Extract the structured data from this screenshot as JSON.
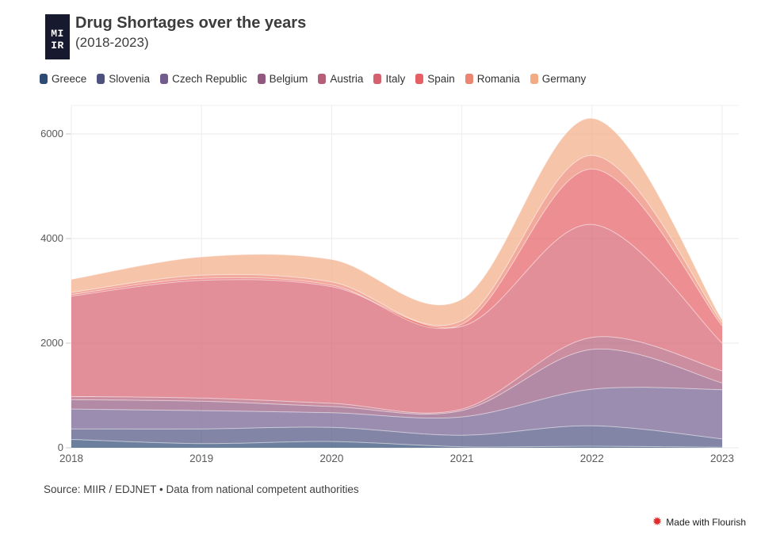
{
  "header": {
    "logo_line1": "MI",
    "logo_line2": "IR",
    "title": "Drug Shortages over the years",
    "subtitle": "(2018-2023)"
  },
  "chart_data": {
    "type": "area",
    "stacked": true,
    "title": "Drug Shortages over the years (2018-2023)",
    "x": [
      2018,
      2019,
      2020,
      2021,
      2022,
      2023
    ],
    "xticks": [
      "2018",
      "2019",
      "2020",
      "2021",
      "2022",
      "2023"
    ],
    "yticks": [
      0,
      2000,
      4000,
      6000
    ],
    "ytick_labels": [
      "0",
      "2000",
      "4000",
      "6000"
    ],
    "ylim": [
      0,
      6000
    ],
    "grid": true,
    "legend_position": "top",
    "fill_opacity": 0.7,
    "series": [
      {
        "name": "Greece",
        "color": "#2d4a73",
        "values": [
          160,
          80,
          120,
          20,
          30,
          10
        ]
      },
      {
        "name": "Slovenia",
        "color": "#4d5180",
        "values": [
          200,
          280,
          270,
          220,
          390,
          160
        ]
      },
      {
        "name": "Czech Republic",
        "color": "#715c8e",
        "values": [
          380,
          350,
          280,
          350,
          700,
          940
        ]
      },
      {
        "name": "Belgium",
        "color": "#91597f",
        "values": [
          180,
          180,
          120,
          120,
          760,
          130
        ]
      },
      {
        "name": "Austria",
        "color": "#b55e78",
        "values": [
          60,
          60,
          60,
          30,
          230,
          230
        ]
      },
      {
        "name": "Italy",
        "color": "#d5606e",
        "values": [
          1920,
          2250,
          2230,
          1580,
          2160,
          530
        ]
      },
      {
        "name": "Spain",
        "color": "#e55f64",
        "values": [
          30,
          40,
          30,
          40,
          1060,
          330
        ]
      },
      {
        "name": "Romania",
        "color": "#ec8672",
        "values": [
          40,
          60,
          60,
          70,
          260,
          60
        ]
      },
      {
        "name": "Germany",
        "color": "#f2ab85",
        "values": [
          250,
          350,
          430,
          410,
          710,
          60
        ]
      }
    ],
    "totals": [
      3220,
      3650,
      3600,
      2840,
      6300,
      2450
    ]
  },
  "footer": {
    "source": "Source: MIIR / EDJNET • Data from national competent authorities"
  },
  "credit": {
    "icon": "starburst",
    "label": "Made with Flourish"
  }
}
